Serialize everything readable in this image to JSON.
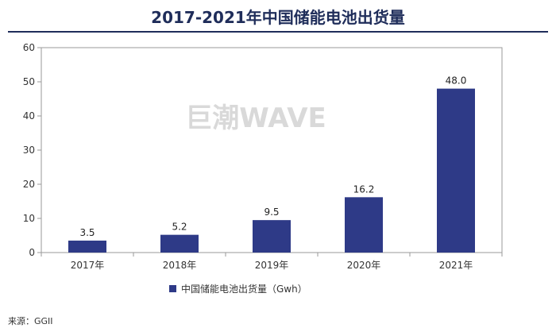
{
  "chart_data": {
    "type": "bar",
    "title": "2017-2021年中国储能电池出货量",
    "categories": [
      "2017年",
      "2018年",
      "2019年",
      "2020年",
      "2021年"
    ],
    "series": [
      {
        "name": "中国储能电池出货量（Gwh）",
        "values": [
          3.5,
          5.2,
          9.5,
          16.2,
          48.0
        ],
        "data_labels": [
          "3.5",
          "5.2",
          "9.5",
          "16.2",
          "48.0"
        ]
      }
    ],
    "yticks": [
      "0",
      "10",
      "20",
      "30",
      "40",
      "50",
      "60"
    ],
    "ylim": [
      0,
      60
    ],
    "grid": false,
    "legend_position": "bottom-left",
    "bar_color": "#2e3a87"
  },
  "watermark": "巨潮WAVE",
  "source": "来源：GGII"
}
